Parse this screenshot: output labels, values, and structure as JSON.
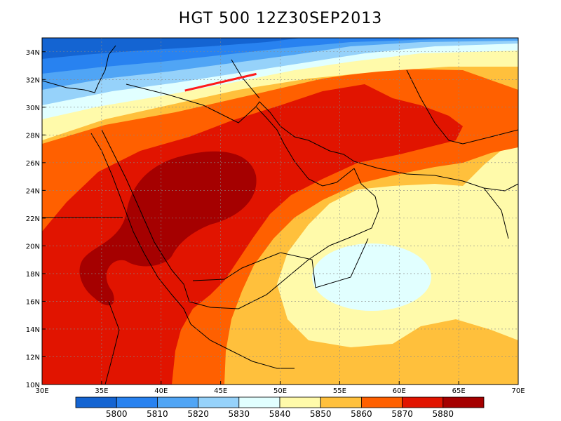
{
  "title": "HGT 500 12Z30SEP2013",
  "map": {
    "lon_range": [
      30,
      70
    ],
    "lat_range": [
      10,
      35
    ],
    "x_ticks": [
      {
        "value": 30,
        "label": "30E"
      },
      {
        "value": 35,
        "label": "35E"
      },
      {
        "value": 40,
        "label": "40E"
      },
      {
        "value": 45,
        "label": "45E"
      },
      {
        "value": 50,
        "label": "50E"
      },
      {
        "value": 55,
        "label": "55E"
      },
      {
        "value": 60,
        "label": "60E"
      },
      {
        "value": 65,
        "label": "65E"
      },
      {
        "value": 70,
        "label": "70E"
      }
    ],
    "y_ticks": [
      {
        "value": 10,
        "label": "10N"
      },
      {
        "value": 12,
        "label": "12N"
      },
      {
        "value": 14,
        "label": "14N"
      },
      {
        "value": 16,
        "label": "16N"
      },
      {
        "value": 18,
        "label": "18N"
      },
      {
        "value": 20,
        "label": "20N"
      },
      {
        "value": 22,
        "label": "22N"
      },
      {
        "value": 24,
        "label": "24N"
      },
      {
        "value": 26,
        "label": "26N"
      },
      {
        "value": 28,
        "label": "28N"
      },
      {
        "value": 30,
        "label": "30N"
      },
      {
        "value": 32,
        "label": "32N"
      },
      {
        "value": 34,
        "label": "34N"
      }
    ],
    "grid": true,
    "red_line": {
      "from": [
        42,
        31.2
      ],
      "to": [
        48,
        32.4
      ],
      "color": "#ff1a1a"
    }
  },
  "colorbar": {
    "colors": [
      "#1464d2",
      "#2882f0",
      "#50a5f5",
      "#96d2fa",
      "#e1ffff",
      "#fffaaa",
      "#ffc03c",
      "#ff6000",
      "#e11400",
      "#a50000"
    ],
    "labels": [
      "5800",
      "5810",
      "5820",
      "5830",
      "5840",
      "5850",
      "5860",
      "5870",
      "5880"
    ]
  }
}
